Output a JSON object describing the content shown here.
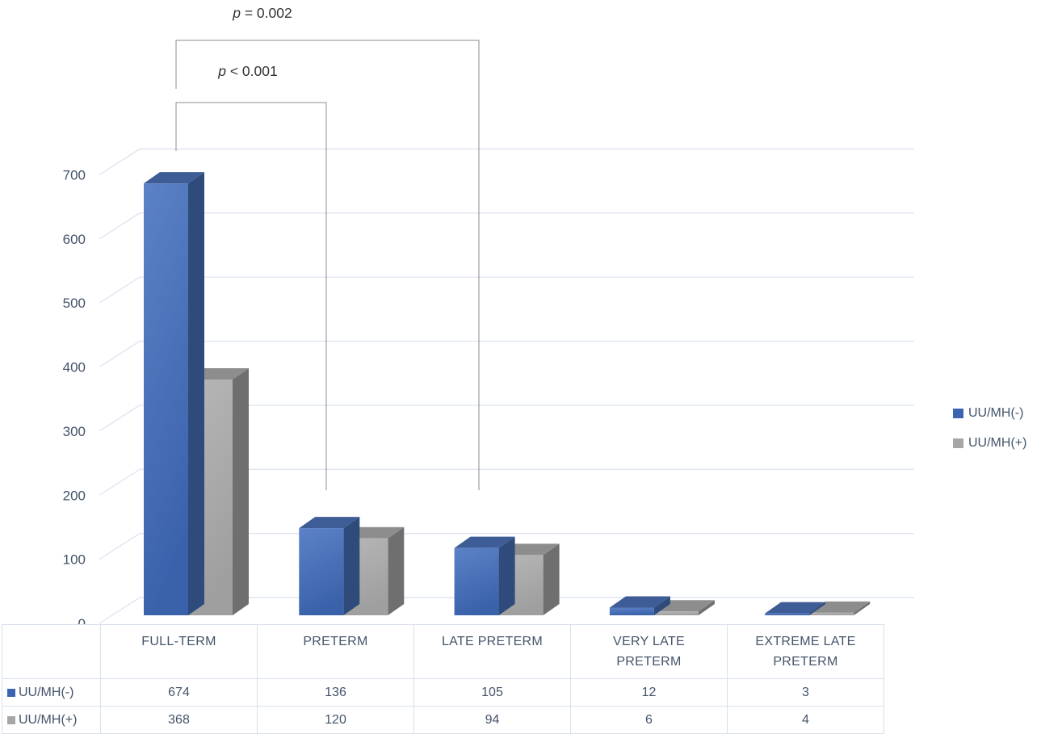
{
  "chart_data": {
    "type": "bar",
    "projection": "3d-clustered-column",
    "title": "",
    "xlabel": "",
    "ylabel": "",
    "categories": [
      "FULL-TERM",
      "PRETERM",
      "LATE PRETERM",
      "VERY LATE\nPRETERM",
      "EXTREME LATE\nPRETERM"
    ],
    "series": [
      {
        "name": "UU/MH(-)",
        "color": "#3b65b0",
        "values": [
          674,
          136,
          105,
          12,
          3
        ]
      },
      {
        "name": "UU/MH(+)",
        "color": "#a6a6a6",
        "values": [
          368,
          120,
          94,
          6,
          4
        ]
      }
    ],
    "ylim": [
      0,
      700
    ],
    "yticks": [
      0,
      100,
      200,
      300,
      400,
      500,
      600,
      700
    ],
    "grid": true,
    "legend_position": "right",
    "data_table_shown": true,
    "annotations": [
      {
        "label": "p = 0.002",
        "compares": [
          "FULL-TERM",
          "LATE PRETERM"
        ]
      },
      {
        "label": "p < 0.001",
        "compares": [
          "FULL-TERM",
          "PRETERM"
        ]
      }
    ]
  },
  "colors": {
    "axis_text": "#44546A",
    "gridline": "#dfe5f0",
    "table_border": "#d8e0ec",
    "bracket_line": "#8c8c8c",
    "annotation_text": "#333333",
    "series1_front_top": "#5c81c6",
    "series1_front_bottom": "#3a62ab",
    "series1_topface": "#3e5d96",
    "series1_sideface": "#2f4b7c",
    "series2_front_top": "#b6b6b6",
    "series2_front_bottom": "#9f9f9f",
    "series2_topface": "#8d8d8d",
    "series2_sideface": "#6f6f6f"
  }
}
